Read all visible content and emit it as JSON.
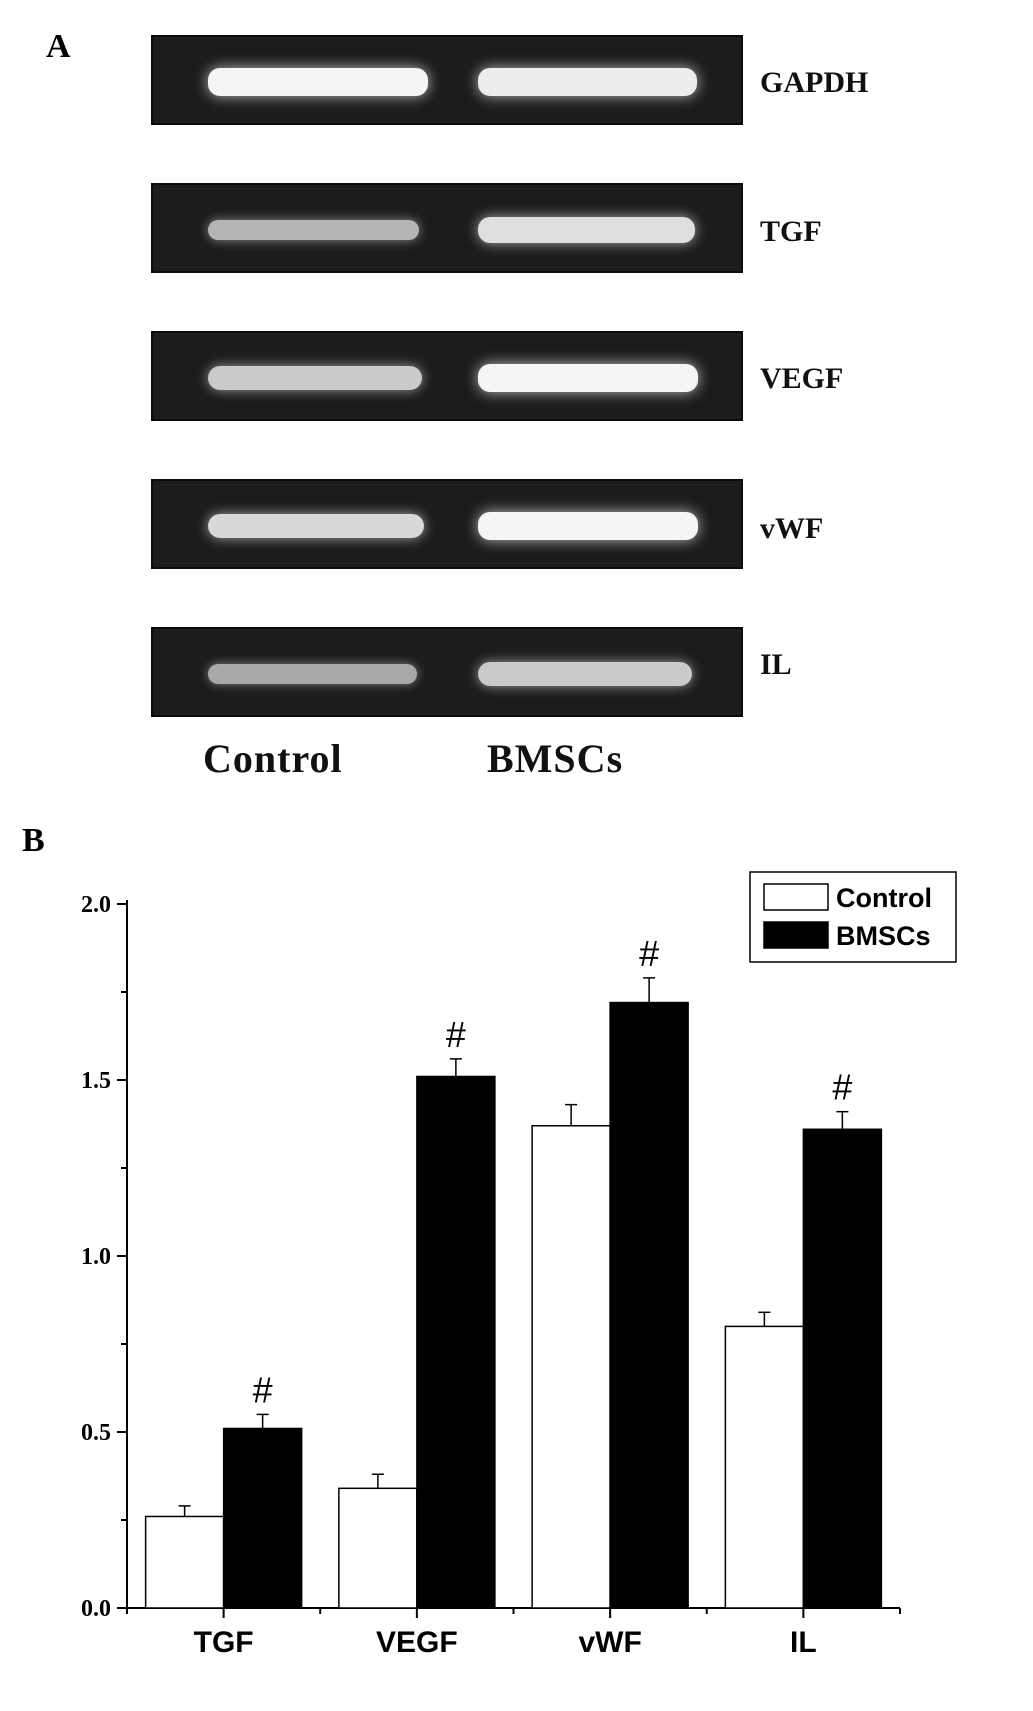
{
  "panel_a": {
    "letter": "A",
    "gels": [
      {
        "label": "GAPDH",
        "control_intensity": 1.0,
        "bmscs_intensity": 0.95
      },
      {
        "label": "TGF",
        "control_intensity": 0.55,
        "bmscs_intensity": 0.85
      },
      {
        "label": "VEGF",
        "control_intensity": 0.7,
        "bmscs_intensity": 1.0
      },
      {
        "label": "vWF",
        "control_intensity": 0.8,
        "bmscs_intensity": 1.0
      },
      {
        "label": "IL",
        "control_intensity": 0.45,
        "bmscs_intensity": 0.7
      }
    ],
    "lanes": [
      "Control",
      "BMSCs"
    ]
  },
  "panel_b": {
    "letter": "B"
  },
  "chart_data": {
    "type": "bar",
    "categories": [
      "TGF",
      "VEGF",
      "vWF",
      "IL"
    ],
    "series": [
      {
        "name": "Control",
        "values": [
          0.26,
          0.34,
          1.37,
          0.8
        ],
        "errors": [
          0.03,
          0.04,
          0.06,
          0.04
        ],
        "color": "#ffffff"
      },
      {
        "name": "BMSCs",
        "values": [
          0.51,
          1.51,
          1.72,
          1.36
        ],
        "errors": [
          0.04,
          0.05,
          0.07,
          0.05
        ],
        "color": "#000000"
      }
    ],
    "significance_marker": "#",
    "ylim": [
      0,
      2.0
    ],
    "yticks": [
      "0.0",
      "0.5",
      "1.0",
      "1.5",
      "2.0"
    ],
    "ytick_values": [
      0,
      0.5,
      1.0,
      1.5,
      2.0
    ],
    "xlabel": "",
    "ylabel": "",
    "title": "",
    "legend_position": "top-right"
  }
}
